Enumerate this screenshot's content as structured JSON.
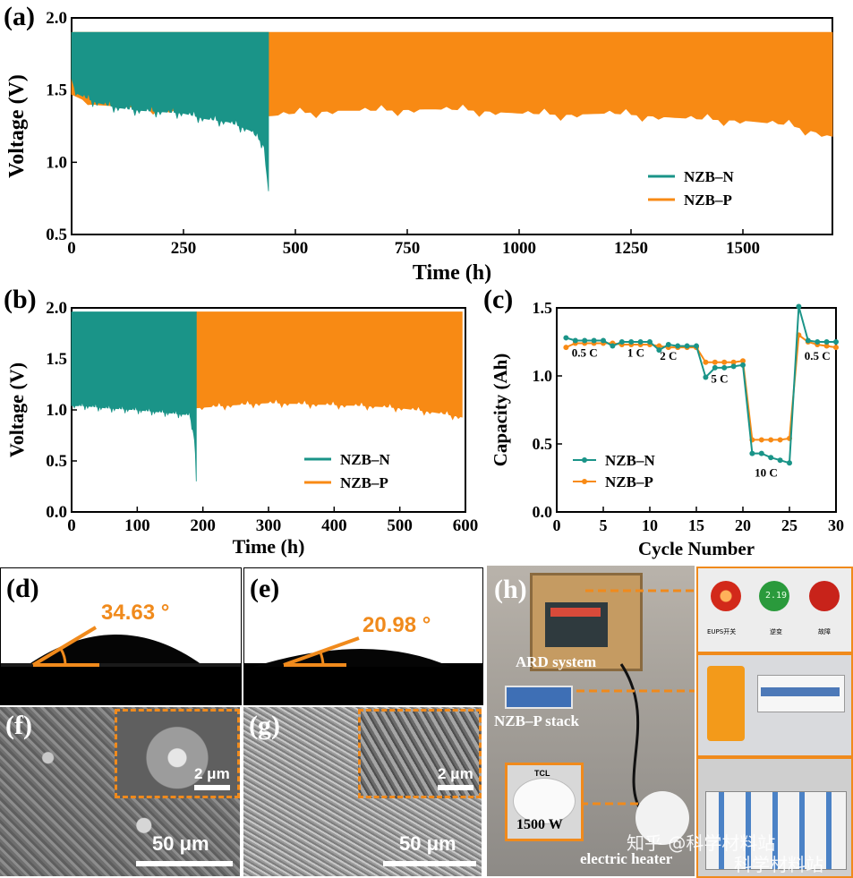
{
  "panels": {
    "a": {
      "label": "(a)"
    },
    "b": {
      "label": "(b)"
    },
    "c": {
      "label": "(c)"
    },
    "d": {
      "label": "(d)",
      "angle": "34.63 °"
    },
    "e": {
      "label": "(e)",
      "angle": "20.98 °"
    },
    "f": {
      "label": "(f)",
      "scale_main": "50 μm",
      "scale_inset": "2 μm"
    },
    "g": {
      "label": "(g)",
      "scale_main": "50 μm",
      "scale_inset": "2 μm"
    },
    "h": {
      "label": "(h)",
      "ard": "ARD system",
      "stack": "NZB–P stack",
      "heater": "electric heater",
      "power": "1500 W",
      "panel_labels": [
        "EUPS开关",
        "逆变",
        "故障"
      ],
      "meter": "2.19",
      "brand": "TCL"
    }
  },
  "watermark": {
    "line1": "知乎 @科学材料站",
    "line2": "科学材料站"
  },
  "colors": {
    "nzb_n": "#1a9488",
    "nzb_p": "#f88a14",
    "accent": "#f08a1c"
  },
  "chart_data": [
    {
      "type": "line",
      "panel": "a",
      "xlabel": "Time (h)",
      "ylabel": "Voltage (V)",
      "xlim": [
        0,
        1700
      ],
      "ylim": [
        0.5,
        2.0
      ],
      "xticks": [
        0,
        250,
        500,
        750,
        1000,
        1250,
        1500
      ],
      "yticks": [
        0.5,
        1.0,
        1.5,
        2.0
      ],
      "legend": "center-right",
      "series": [
        {
          "name": "NZB–N",
          "upper": 1.9,
          "x": [
            0,
            10,
            50,
            100,
            150,
            200,
            250,
            300,
            350,
            400,
            430,
            440
          ],
          "lower": [
            1.58,
            1.48,
            1.42,
            1.38,
            1.36,
            1.35,
            1.34,
            1.3,
            1.28,
            1.22,
            1.12,
            0.8
          ]
        },
        {
          "name": "NZB–P",
          "upper": 1.9,
          "x": [
            0,
            50,
            440,
            500,
            600,
            700,
            800,
            900,
            1000,
            1100,
            1200,
            1300,
            1400,
            1500,
            1600,
            1700
          ],
          "lower": [
            1.47,
            1.4,
            1.32,
            1.34,
            1.36,
            1.36,
            1.37,
            1.36,
            1.34,
            1.33,
            1.34,
            1.32,
            1.3,
            1.29,
            1.26,
            1.18
          ]
        }
      ]
    },
    {
      "type": "line",
      "panel": "b",
      "xlabel": "Time (h)",
      "ylabel": "Voltage (V)",
      "xlim": [
        0,
        600
      ],
      "ylim": [
        0.0,
        2.0
      ],
      "xticks": [
        0,
        100,
        200,
        300,
        400,
        500,
        600
      ],
      "yticks": [
        0.0,
        0.5,
        1.0,
        1.5,
        2.0
      ],
      "legend": "lower-right",
      "series": [
        {
          "name": "NZB–N",
          "upper": 1.96,
          "x": [
            0,
            20,
            50,
            100,
            150,
            180,
            188,
            190
          ],
          "lower": [
            1.04,
            1.04,
            1.02,
            1.0,
            0.97,
            0.95,
            0.7,
            0.3
          ]
        },
        {
          "name": "NZB–P",
          "upper": 1.96,
          "x": [
            190,
            250,
            300,
            350,
            400,
            450,
            500,
            550,
            595
          ],
          "lower": [
            1.02,
            1.05,
            1.07,
            1.06,
            1.05,
            1.04,
            1.02,
            0.98,
            0.93
          ]
        }
      ]
    },
    {
      "type": "line",
      "panel": "c",
      "xlabel": "Cycle Number",
      "ylabel": "Capacity (Ah)",
      "xlim": [
        0,
        30
      ],
      "ylim": [
        0.0,
        1.5
      ],
      "xticks": [
        0,
        5,
        10,
        15,
        20,
        25,
        30
      ],
      "yticks": [
        0.0,
        0.5,
        1.0,
        1.5
      ],
      "legend": "lower-left",
      "annotations": [
        "0.5 C",
        "1 C",
        "2 C",
        "5 C",
        "10 C",
        "0.5 C"
      ],
      "annotation_pos": [
        [
          3,
          1.14
        ],
        [
          8.5,
          1.14
        ],
        [
          12,
          1.12
        ],
        [
          17.5,
          0.95
        ],
        [
          22.5,
          0.26
        ],
        [
          28,
          1.12
        ]
      ],
      "series": [
        {
          "name": "NZB–N",
          "x": [
            1,
            2,
            3,
            4,
            5,
            6,
            7,
            8,
            9,
            10,
            11,
            12,
            13,
            14,
            15,
            16,
            17,
            18,
            19,
            20,
            21,
            22,
            23,
            24,
            25,
            26,
            27,
            28,
            29,
            30
          ],
          "values": [
            1.28,
            1.26,
            1.26,
            1.26,
            1.26,
            1.22,
            1.25,
            1.25,
            1.25,
            1.25,
            1.19,
            1.23,
            1.22,
            1.22,
            1.22,
            0.99,
            1.06,
            1.06,
            1.07,
            1.08,
            0.43,
            0.43,
            0.4,
            0.38,
            0.36,
            1.51,
            1.26,
            1.25,
            1.25,
            1.25
          ]
        },
        {
          "name": "NZB–P",
          "x": [
            1,
            2,
            3,
            4,
            5,
            6,
            7,
            8,
            9,
            10,
            11,
            12,
            13,
            14,
            15,
            16,
            17,
            18,
            19,
            20,
            21,
            22,
            23,
            24,
            25,
            26,
            27,
            28,
            29,
            30
          ],
          "values": [
            1.21,
            1.24,
            1.24,
            1.24,
            1.24,
            1.24,
            1.23,
            1.23,
            1.23,
            1.23,
            1.22,
            1.21,
            1.21,
            1.21,
            1.21,
            1.1,
            1.1,
            1.1,
            1.1,
            1.11,
            0.53,
            0.53,
            0.53,
            0.53,
            0.54,
            1.3,
            1.25,
            1.23,
            1.22,
            1.21
          ]
        }
      ]
    }
  ]
}
